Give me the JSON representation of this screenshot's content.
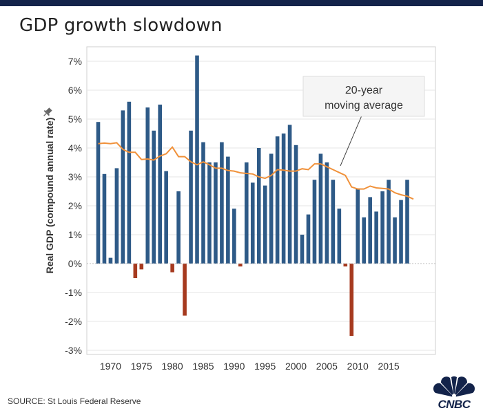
{
  "header": {
    "title": "GDP growth slowdown"
  },
  "footer": {
    "source": "SOURCE: St Louis Federal Reserve",
    "logo_text": "CNBC"
  },
  "colors": {
    "positive": "#2e5a87",
    "negative": "#a63a1f",
    "average": "#f0913a",
    "header_bar": "#13234a"
  },
  "chart_data": {
    "type": "bar",
    "ylabel": "Real GDP (compound annual rate)",
    "ylim": [
      -3.2,
      7.5
    ],
    "yticks": [
      -3,
      -2,
      -1,
      0,
      1,
      2,
      3,
      4,
      5,
      6,
      7
    ],
    "ytick_labels": [
      "-3%",
      "-2%",
      "-1%",
      "0%",
      "1%",
      "2%",
      "3%",
      "4%",
      "5%",
      "6%",
      "7%"
    ],
    "xticks": [
      1970,
      1975,
      1980,
      1985,
      1990,
      1995,
      2000,
      2005,
      2010,
      2015
    ],
    "xtick_labels": [
      "1970",
      "1975",
      "1980",
      "1985",
      "1990",
      "1995",
      "2000",
      "2005",
      "2010",
      "2015"
    ],
    "grid": true,
    "series": [
      {
        "name": "Real GDP",
        "x": [
          1968,
          1969,
          1970,
          1971,
          1972,
          1973,
          1974,
          1975,
          1976,
          1977,
          1978,
          1979,
          1980,
          1981,
          1982,
          1983,
          1984,
          1985,
          1986,
          1987,
          1988,
          1989,
          1990,
          1991,
          1992,
          1993,
          1994,
          1995,
          1996,
          1997,
          1998,
          1999,
          2000,
          2001,
          2002,
          2003,
          2004,
          2005,
          2006,
          2007,
          2008,
          2009,
          2010,
          2011,
          2012,
          2013,
          2014,
          2015,
          2016,
          2017,
          2018
        ],
        "values": [
          4.9,
          3.1,
          0.2,
          3.3,
          5.3,
          5.6,
          -0.5,
          -0.2,
          5.4,
          4.6,
          5.5,
          3.2,
          -0.3,
          2.5,
          -1.8,
          4.6,
          7.2,
          4.2,
          3.5,
          3.5,
          4.2,
          3.7,
          1.9,
          -0.1,
          3.5,
          2.8,
          4.0,
          2.7,
          3.8,
          4.4,
          4.5,
          4.8,
          4.1,
          1.0,
          1.7,
          2.9,
          3.8,
          3.5,
          2.9,
          1.9,
          -0.1,
          -2.5,
          2.6,
          1.6,
          2.3,
          1.8,
          2.5,
          2.9,
          1.6,
          2.2,
          2.9
        ]
      },
      {
        "name": "20-year moving average",
        "x": [
          1968,
          1969,
          1970,
          1971,
          1972,
          1973,
          1974,
          1975,
          1976,
          1977,
          1978,
          1979,
          1980,
          1981,
          1982,
          1983,
          1984,
          1985,
          1986,
          1987,
          1988,
          1989,
          1990,
          1991,
          1992,
          1993,
          1994,
          1995,
          1996,
          1997,
          1998,
          1999,
          2000,
          2001,
          2002,
          2003,
          2004,
          2005,
          2006,
          2007,
          2008,
          2009,
          2010,
          2011,
          2012,
          2013,
          2014,
          2015,
          2016,
          2017,
          2018,
          2019
        ],
        "values": [
          4.15,
          4.17,
          4.15,
          4.18,
          3.95,
          3.85,
          3.85,
          3.6,
          3.62,
          3.58,
          3.72,
          3.8,
          4.03,
          3.7,
          3.7,
          3.52,
          3.42,
          3.52,
          3.42,
          3.3,
          3.3,
          3.22,
          3.2,
          3.14,
          3.12,
          3.1,
          3.0,
          2.95,
          3.05,
          3.25,
          3.23,
          3.2,
          3.2,
          3.28,
          3.25,
          3.45,
          3.45,
          3.35,
          3.25,
          3.15,
          3.05,
          2.65,
          2.58,
          2.58,
          2.68,
          2.62,
          2.6,
          2.58,
          2.45,
          2.38,
          2.33,
          2.23
        ]
      }
    ],
    "annotation": {
      "line1": "20-year",
      "line2": "moving average"
    }
  }
}
